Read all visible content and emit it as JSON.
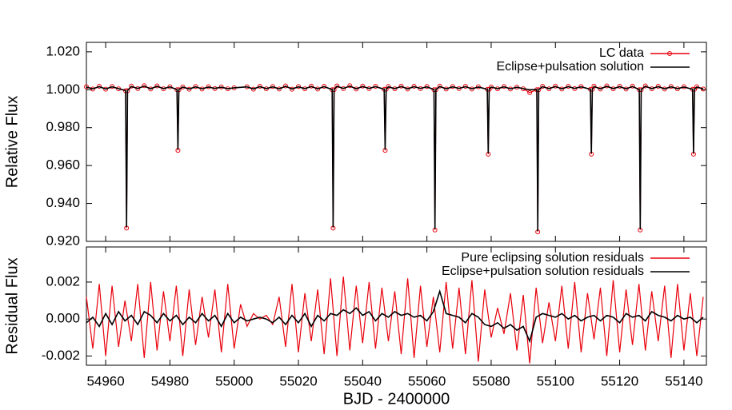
{
  "chart_data": [
    {
      "type": "line",
      "ylabel": "Relative Flux",
      "x": [
        54954,
        54956,
        54958,
        54960,
        54962,
        54964,
        54966.2,
        54966.5,
        54966.8,
        54968,
        54970,
        54972,
        54974,
        54976,
        54978,
        54980,
        54982.2,
        54982.5,
        54982.8,
        54984,
        54986,
        54988,
        54990,
        54992,
        54994,
        54996,
        54998,
        55000,
        55004,
        55006,
        55008,
        55010,
        55012,
        55014,
        55016,
        55018,
        55020,
        55022,
        55024,
        55026,
        55028,
        55030.5,
        55030.8,
        55031.1,
        55032,
        55034,
        55036,
        55038,
        55040,
        55042,
        55044,
        55046.7,
        55047,
        55047.3,
        55048,
        55050,
        55052,
        55054,
        55056,
        55058,
        55060,
        55062.2,
        55062.5,
        55062.8,
        55064,
        55066,
        55068,
        55070,
        55072,
        55074,
        55076,
        55078.8,
        55079.1,
        55079.4,
        55080,
        55082,
        55084,
        55086,
        55088,
        55090,
        55092,
        55094.2,
        55094.5,
        55094.8,
        55096,
        55098,
        55100,
        55102,
        55104,
        55106,
        55108,
        55110.9,
        55111.2,
        55111.5,
        55112,
        55114,
        55116,
        55118,
        55120,
        55122,
        55124,
        55126.1,
        55126.4,
        55126.7,
        55128,
        55130,
        55132,
        55134,
        55136,
        55138,
        55140,
        55142.7,
        55143,
        55143.3,
        55144,
        55146
      ],
      "series": [
        {
          "name": "LC data",
          "color": "#e8000b",
          "marker": "circle",
          "values": [
            1.0016,
            1.0004,
            1.0018,
            1.0003,
            1.0017,
            1.0005,
            0.9995,
            0.927,
            0.9995,
            1.0019,
            1.0006,
            1.0021,
            1.0004,
            1.002,
            1.0005,
            1.0016,
            1.0,
            0.968,
            1.0,
            1.0015,
            1.0003,
            1.0017,
            1.0004,
            1.0016,
            1.0006,
            1.0015,
            1.0005,
            1.001,
            1.0016,
            1.0003,
            1.0018,
            1.0005,
            1.0017,
            1.0004,
            1.002,
            1.0003,
            1.0017,
            1.0005,
            1.0019,
            1.0004,
            1.0018,
            1.0,
            0.927,
            1.0,
            1.002,
            1.0006,
            1.0021,
            1.0004,
            1.0019,
            1.0006,
            1.0018,
            1.0002,
            0.968,
            1.0002,
            1.0017,
            1.0005,
            1.0019,
            1.0004,
            1.0018,
            1.0006,
            1.0017,
            1.0,
            0.926,
            1.0,
            1.0019,
            1.0004,
            1.0017,
            1.0006,
            1.0018,
            1.0004,
            1.0016,
            1.0002,
            0.966,
            1.0002,
            1.0015,
            1.0005,
            1.0017,
            1.0004,
            1.0014,
            1.0005,
            0.9985,
            1.0,
            0.925,
            1.0,
            1.0018,
            1.0005,
            1.0019,
            1.0004,
            1.0018,
            1.0006,
            1.0017,
            1.0002,
            0.966,
            1.0002,
            1.0019,
            1.0004,
            1.002,
            1.0005,
            1.0018,
            1.0004,
            1.0019,
            1.0,
            0.926,
            1.0,
            1.002,
            1.0005,
            1.0018,
            1.0004,
            1.0017,
            1.0005,
            1.0016,
            1.0002,
            0.966,
            1.0002,
            1.0016,
            1.0004
          ]
        },
        {
          "name": "Eclipse+pulsation solution",
          "color": "#000000",
          "values": [
            1.0014,
            1.0005,
            1.0016,
            1.0004,
            1.0015,
            1.0006,
            0.9996,
            0.9275,
            0.9996,
            1.0017,
            1.0007,
            1.0019,
            1.0005,
            1.0018,
            1.0006,
            1.0015,
            1.0001,
            0.9685,
            1.0001,
            1.0014,
            1.0004,
            1.0015,
            1.0005,
            1.0014,
            1.0007,
            1.0013,
            1.0006,
            1.001,
            1.0015,
            1.0004,
            1.0016,
            1.0006,
            1.0015,
            1.0005,
            1.0018,
            1.0004,
            1.0015,
            1.0006,
            1.0017,
            1.0005,
            1.0016,
            1.0001,
            0.9275,
            1.0001,
            1.0018,
            1.0007,
            1.0019,
            1.0005,
            1.0017,
            1.0007,
            1.0016,
            1.0003,
            0.9685,
            1.0003,
            1.0015,
            1.0006,
            1.0017,
            1.0005,
            1.0016,
            1.0007,
            1.0015,
            1.0001,
            0.9265,
            1.0001,
            1.0017,
            1.0005,
            1.0015,
            1.0007,
            1.0016,
            1.0005,
            1.0014,
            1.0003,
            0.9665,
            1.0003,
            1.0014,
            1.0006,
            1.0015,
            1.0005,
            1.0013,
            1.0006,
            1.0,
            1.0001,
            0.9255,
            1.0001,
            1.0016,
            1.0006,
            1.0017,
            1.0005,
            1.0016,
            1.0007,
            1.0015,
            1.0003,
            0.9665,
            1.0003,
            1.0017,
            1.0005,
            1.0018,
            1.0006,
            1.0016,
            1.0005,
            1.0017,
            1.0001,
            0.9265,
            1.0001,
            1.0018,
            1.0006,
            1.0016,
            1.0005,
            1.0015,
            1.0006,
            1.0014,
            1.0003,
            0.9665,
            1.0003,
            1.0014,
            1.0005
          ]
        }
      ],
      "xlim": [
        54954,
        55147
      ],
      "xticks": [
        54960,
        54980,
        55000,
        55020,
        55040,
        55060,
        55080,
        55100,
        55120,
        55140
      ],
      "ylim": [
        0.92,
        1.025
      ],
      "yticks": [
        {
          "value": 0.92,
          "label": "0.920"
        },
        {
          "value": 0.94,
          "label": "0.940"
        },
        {
          "value": 0.96,
          "label": "0.960"
        },
        {
          "value": 0.98,
          "label": "0.980"
        },
        {
          "value": 1.0,
          "label": "1.000"
        },
        {
          "value": 1.02,
          "label": "1.020"
        }
      ],
      "legend": "top-right"
    },
    {
      "type": "line",
      "ylabel": "Residual Flux",
      "xlabel": "BJD - 2400000",
      "x": [
        54954,
        54956,
        54958,
        54960,
        54962,
        54964,
        54966,
        54968,
        54970,
        54972,
        54974,
        54976,
        54978,
        54980,
        54982,
        54984,
        54986,
        54988,
        54990,
        54992,
        54994,
        54996,
        54998,
        55000,
        55002,
        55004,
        55006,
        55008,
        55010,
        55012,
        55014,
        55016,
        55018,
        55020,
        55022,
        55024,
        55026,
        55028,
        55030,
        55032,
        55034,
        55036,
        55038,
        55040,
        55042,
        55044,
        55046,
        55048,
        55050,
        55052,
        55054,
        55056,
        55058,
        55060,
        55062,
        55064,
        55066,
        55068,
        55070,
        55072,
        55074,
        55076,
        55078,
        55080,
        55082,
        55084,
        55086,
        55088,
        55090,
        55092,
        55094,
        55096,
        55098,
        55100,
        55102,
        55104,
        55106,
        55108,
        55110,
        55112,
        55114,
        55116,
        55118,
        55120,
        55122,
        55124,
        55126,
        55128,
        55130,
        55132,
        55134,
        55136,
        55138,
        55140,
        55142,
        55144,
        55146
      ],
      "series": [
        {
          "name": "Pure eclipsing solution residuals",
          "color": "#e8000b",
          "values": [
            0.0012,
            -0.0016,
            0.0019,
            -0.002,
            0.0018,
            -0.0015,
            0.001,
            -0.0012,
            0.0019,
            -0.0021,
            0.002,
            -0.0017,
            0.0015,
            -0.0012,
            0.0018,
            -0.002,
            0.0016,
            -0.0014,
            0.0012,
            -0.001,
            0.0016,
            -0.0018,
            0.0019,
            -0.0016,
            0.0008,
            -0.0004,
            0.0003,
            0.0,
            0.0002,
            -0.0003,
            0.0012,
            -0.0015,
            0.0019,
            -0.0018,
            0.0014,
            -0.0012,
            0.0016,
            -0.0019,
            0.0022,
            -0.002,
            0.0023,
            -0.0017,
            0.0018,
            -0.0013,
            0.002,
            -0.0016,
            0.0017,
            -0.0012,
            0.0015,
            -0.0019,
            0.0022,
            -0.0021,
            0.0018,
            -0.0015,
            0.0012,
            -0.0018,
            0.002,
            -0.0016,
            0.0017,
            -0.0019,
            0.0021,
            -0.0023,
            0.0016,
            -0.001,
            0.0006,
            -0.0008,
            0.0014,
            -0.0017,
            0.0013,
            -0.0024,
            0.0017,
            -0.0013,
            0.0009,
            -0.0012,
            0.0018,
            -0.0016,
            0.002,
            -0.0018,
            0.0014,
            -0.0011,
            0.0017,
            -0.002,
            0.0021,
            -0.0018,
            0.0016,
            -0.0014,
            0.0019,
            -0.0017,
            0.0015,
            -0.0012,
            0.0018,
            -0.0021,
            0.0019,
            -0.0017,
            0.0014,
            -0.002,
            0.0012
          ]
        },
        {
          "name": "Eclipse+pulsation solution residuals",
          "color": "#000000",
          "values": [
            -0.0002,
            0.0001,
            -0.0004,
            0.0003,
            -0.0003,
            0.0004,
            -0.0001,
            0.0002,
            -0.0003,
            0.0004,
            0.0002,
            -0.0002,
            0.0003,
            -0.0001,
            0.0002,
            -0.0003,
            0.0001,
            -0.0002,
            0.0003,
            -0.0001,
            0.0002,
            -0.0004,
            0.0003,
            -0.0002,
            0.0001,
            -0.0001,
            0.0,
            0.0001,
            0.0,
            -0.0002,
            0.0001,
            -0.0003,
            0.0002,
            -0.0002,
            0.0003,
            -0.0004,
            0.0002,
            -0.0001,
            0.0003,
            0.0002,
            0.0005,
            0.0003,
            0.0006,
            0.0002,
            0.0004,
            -0.0001,
            0.0003,
            0.0001,
            0.0004,
            0.0002,
            0.0003,
            0.0001,
            0.0002,
            -0.0001,
            0.0004,
            0.0015,
            0.0003,
            0.0002,
            0.0001,
            -0.0002,
            0.0003,
            0.0001,
            -0.0003,
            -0.0004,
            -0.0002,
            -0.0005,
            -0.0003,
            -0.0006,
            -0.0004,
            -0.0012,
            0.0001,
            0.0003,
            0.0002,
            0.0001,
            0.0003,
            0.0,
            0.0002,
            -0.0001,
            0.0001,
            0.0002,
            -0.0001,
            0.0002,
            0.0001,
            -0.0002,
            0.0003,
            0.0001,
            0.0002,
            -0.0001,
            0.0004,
            0.0002,
            0.0001,
            -0.0001,
            0.0002,
            0.0,
            0.0001,
            -0.0002,
            0.0001
          ]
        }
      ],
      "xlim": [
        54954,
        55147
      ],
      "xticks": [
        54960,
        54980,
        55000,
        55020,
        55040,
        55060,
        55080,
        55100,
        55120,
        55140
      ],
      "ylim": [
        -0.0025,
        0.0039
      ],
      "yticks": [
        {
          "value": -0.002,
          "label": "-0.002"
        },
        {
          "value": 0.0,
          "label": "0.000"
        },
        {
          "value": 0.002,
          "label": "0.002"
        }
      ],
      "legend": "top-right"
    }
  ]
}
